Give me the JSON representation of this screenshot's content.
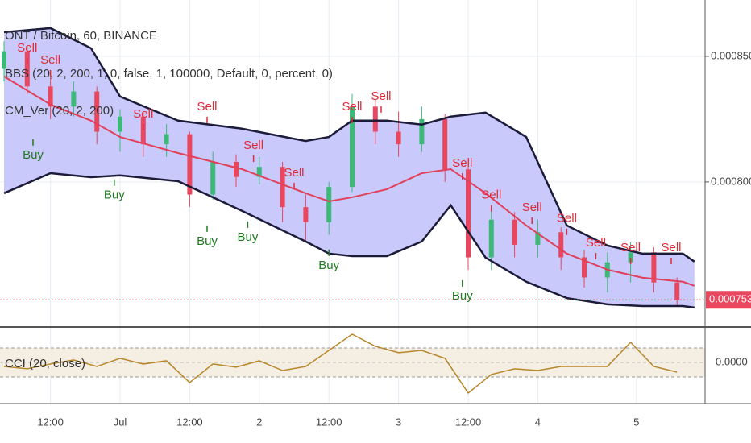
{
  "chart_data": {
    "type": "candlestick",
    "title": "ONT / Bitcoin, 60, BINANCE",
    "indicators": [
      "BBS (20, 2, 200, 1, 0, false, 1, 100000, Default, 0, percent, 0)",
      "CM_Ver (20, 2, 200)"
    ],
    "xlim": [
      0,
      120
    ],
    "xticks": [
      {
        "value": 8,
        "label": "12:00"
      },
      {
        "value": 20,
        "label": "Jul"
      },
      {
        "value": 32,
        "label": "12:00"
      },
      {
        "value": 44,
        "label": "2"
      },
      {
        "value": 56,
        "label": "12:00"
      },
      {
        "value": 68,
        "label": "3"
      },
      {
        "value": 80,
        "label": "12:00"
      },
      {
        "value": 92,
        "label": "4"
      },
      {
        "value": 109,
        "label": "5"
      }
    ],
    "ylim": [
      0.0007426,
      0.0008724
    ],
    "yticks": [
      {
        "value": 0.00085,
        "label": "0.0008500"
      },
      {
        "value": 0.0008,
        "label": "0.0008000"
      }
    ],
    "grid": true,
    "candles": {
      "up_color": "#3cb878",
      "down_color": "#e8475f",
      "x": [
        0,
        4,
        8,
        12,
        16,
        20,
        24,
        28,
        32,
        36,
        40,
        44,
        48,
        52,
        56,
        60,
        64,
        68,
        72,
        76,
        80,
        84,
        88,
        92,
        96,
        100,
        104,
        108,
        112,
        116
      ],
      "open": [
        0.000845,
        0.000852,
        0.000838,
        0.00083,
        0.000836,
        0.00082,
        0.000826,
        0.000815,
        0.000819,
        0.000795,
        0.000808,
        0.000802,
        0.000806,
        0.00079,
        0.000784,
        0.000798,
        0.00083,
        0.00082,
        0.000815,
        0.000825,
        0.000805,
        0.00077,
        0.000785,
        0.000775,
        0.00078,
        0.00077,
        0.000762,
        0.000768,
        0.000772,
        0.00076
      ],
      "high": [
        0.000856,
        0.000854,
        0.000842,
        0.00084,
        0.000838,
        0.000829,
        0.000828,
        0.000823,
        0.00082,
        0.000812,
        0.000811,
        0.00081,
        0.000808,
        0.000795,
        0.0008,
        0.000835,
        0.000833,
        0.000828,
        0.00083,
        0.000827,
        0.000806,
        0.00079,
        0.000788,
        0.000785,
        0.000782,
        0.000773,
        0.000772,
        0.000776,
        0.000774,
        0.000762
      ],
      "low": [
        0.00084,
        0.000835,
        0.000825,
        0.000826,
        0.000815,
        0.000812,
        0.00081,
        0.00081,
        0.00079,
        0.000793,
        0.000798,
        0.000799,
        0.000784,
        0.000776,
        0.000779,
        0.000796,
        0.000815,
        0.00081,
        0.000812,
        0.0008,
        0.000765,
        0.000765,
        0.00077,
        0.00077,
        0.000765,
        0.000758,
        0.000756,
        0.00076,
        0.000756,
        0.000751
      ],
      "close": [
        0.000852,
        0.000838,
        0.00083,
        0.000836,
        0.00082,
        0.000826,
        0.000815,
        0.000819,
        0.000795,
        0.000808,
        0.000802,
        0.000806,
        0.00079,
        0.000784,
        0.000798,
        0.00083,
        0.00082,
        0.000815,
        0.000825,
        0.000805,
        0.00077,
        0.000785,
        0.000775,
        0.00078,
        0.00077,
        0.000762,
        0.000768,
        0.000772,
        0.00076,
        0.0007531
      ]
    },
    "bands": {
      "line_color": "#1c1c3a",
      "fill_color": "#c9c9fb",
      "middle_color": "#e0405a",
      "x": [
        0,
        8,
        15,
        20,
        30,
        41,
        52,
        56,
        60,
        66,
        72,
        77,
        83,
        90,
        97,
        104,
        110,
        117,
        119
      ],
      "upper": [
        0.0008596,
        0.0008612,
        0.0008532,
        0.000834,
        0.0008244,
        0.0008212,
        0.0008163,
        0.0008179,
        0.0008244,
        0.0008244,
        0.0008228,
        0.000826,
        0.0008276,
        0.0008179,
        0.0007827,
        0.0007747,
        0.0007715,
        0.0007715,
        0.0007683
      ],
      "middle": [
        0.000842,
        0.0008308,
        0.0008244,
        0.0008179,
        0.0008115,
        0.0008051,
        0.0007955,
        0.0007923,
        0.0007939,
        0.0007971,
        0.0008035,
        0.0008051,
        0.0007955,
        0.0007827,
        0.0007715,
        0.0007651,
        0.0007619,
        0.0007603,
        0.0007587
      ],
      "lower": [
        0.0007955,
        0.0008035,
        0.0008019,
        0.0008026,
        0.0008003,
        0.0007885,
        0.0007763,
        0.0007715,
        0.0007705,
        0.0007705,
        0.0007763,
        0.0007907,
        0.0007699,
        0.0007603,
        0.0007538,
        0.0007513,
        0.0007506,
        0.0007506,
        0.00075
      ]
    },
    "signals": [
      {
        "label": "Sell",
        "x": 4,
        "y": 0.0008532
      },
      {
        "label": "Sell",
        "x": 8,
        "y": 0.0008484
      },
      {
        "label": "Sell",
        "x": 24,
        "y": 0.0008269
      },
      {
        "label": "Sell",
        "x": 35,
        "y": 0.0008298
      },
      {
        "label": "Sell",
        "x": 43,
        "y": 0.0008144
      },
      {
        "label": "Sell",
        "x": 50,
        "y": 0.0008035
      },
      {
        "label": "Sell",
        "x": 60,
        "y": 0.0008298
      },
      {
        "label": "Sell",
        "x": 65,
        "y": 0.000834
      },
      {
        "label": "Sell",
        "x": 79,
        "y": 0.0008074
      },
      {
        "label": "Sell",
        "x": 84,
        "y": 0.0007946
      },
      {
        "label": "Sell",
        "x": 91,
        "y": 0.0007897
      },
      {
        "label": "Sell",
        "x": 97,
        "y": 0.0007853
      },
      {
        "label": "Sell",
        "x": 102,
        "y": 0.0007756
      },
      {
        "label": "Sell",
        "x": 108,
        "y": 0.0007737
      },
      {
        "label": "Sell",
        "x": 115,
        "y": 0.0007737
      },
      {
        "label": "Buy",
        "x": 5,
        "y": 0.0008106
      },
      {
        "label": "Buy",
        "x": 19,
        "y": 0.0007946
      },
      {
        "label": "Buy",
        "x": 35,
        "y": 0.0007763
      },
      {
        "label": "Buy",
        "x": 42,
        "y": 0.0007779
      },
      {
        "label": "Buy",
        "x": 56,
        "y": 0.0007667
      },
      {
        "label": "Buy",
        "x": 79,
        "y": 0.0007545
      }
    ],
    "sell_color": "#e02a3a",
    "buy_color": "#1f7a1f",
    "last_price": 0.0007531,
    "last_price_color": "#e8475f",
    "cci": {
      "type": "line",
      "title": "CCI (20, close)",
      "color": "#b8862b",
      "ylim": [
        -278,
        233
      ],
      "yticks": [
        {
          "value": 0,
          "label": "0.0000"
        }
      ],
      "levels": [
        100,
        -100
      ],
      "values": [
        -28,
        -44,
        -11,
        17,
        -28,
        28,
        -11,
        11,
        -139,
        -11,
        -33,
        11,
        -56,
        -28,
        83,
        194,
        111,
        67,
        83,
        28,
        -211,
        -83,
        -44,
        -56,
        -28,
        -28,
        -28,
        139,
        -28,
        -67
      ]
    }
  }
}
